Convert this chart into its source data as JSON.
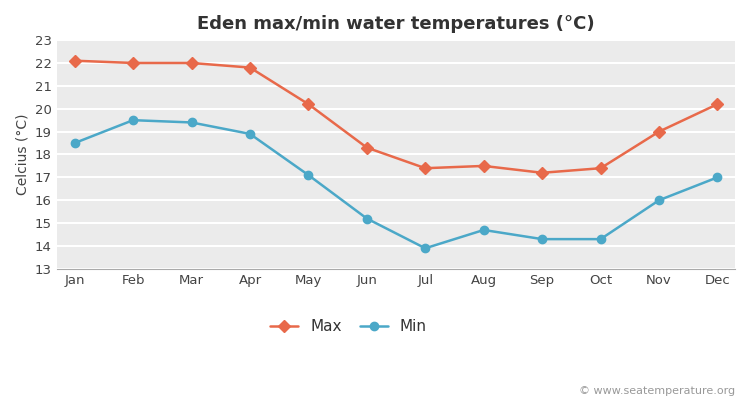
{
  "title": "Eden max/min water temperatures (°C)",
  "ylabel": "Celcius (°C)",
  "months": [
    "Jan",
    "Feb",
    "Mar",
    "Apr",
    "May",
    "Jun",
    "Jul",
    "Aug",
    "Sep",
    "Oct",
    "Nov",
    "Dec"
  ],
  "max_values": [
    22.1,
    22.0,
    22.0,
    21.8,
    20.2,
    18.3,
    17.4,
    17.5,
    17.2,
    17.4,
    19.0,
    20.2
  ],
  "min_values": [
    18.5,
    19.5,
    19.4,
    18.9,
    17.1,
    15.2,
    13.9,
    14.7,
    14.3,
    14.3,
    16.0,
    17.0
  ],
  "max_color": "#E8694A",
  "min_color": "#4BA8C8",
  "background_color": "#FFFFFF",
  "plot_bg_color": "#EBEBEB",
  "grid_color": "#FFFFFF",
  "ylim": [
    13,
    23
  ],
  "yticks": [
    13,
    14,
    15,
    16,
    17,
    18,
    19,
    20,
    21,
    22,
    23
  ],
  "legend_max": "Max",
  "legend_min": "Min",
  "watermark": "© www.seatemperature.org",
  "title_fontsize": 13,
  "label_fontsize": 10,
  "tick_fontsize": 9.5,
  "watermark_fontsize": 8
}
